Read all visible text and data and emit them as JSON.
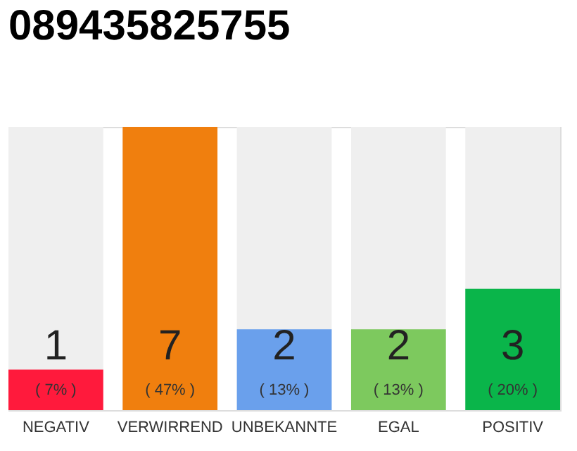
{
  "chart_data": {
    "type": "bar",
    "title": "089435825755",
    "categories": [
      "NEGATIV",
      "VERWIRREND",
      "UNBEKANNTE",
      "EGAL",
      "POSITIV"
    ],
    "values": [
      1,
      7,
      2,
      2,
      3
    ],
    "colors": [
      "#ff1a3c",
      "#f07f0e",
      "#6aa0ec",
      "#7dc95e",
      "#0ab54a"
    ],
    "ylim": [
      0,
      7
    ],
    "tick_labels": "x",
    "data_labels": true,
    "annotations": [
      "( 7% )",
      "( 47% )",
      "( 13% )",
      "( 13% )",
      "( 20% )"
    ]
  }
}
